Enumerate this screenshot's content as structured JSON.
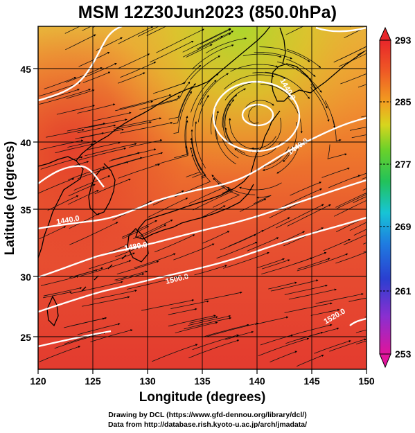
{
  "figure": {
    "title": "MSM 12Z30Jun2023 (850.0hPa)",
    "x_axis_label": "Longitude (degrees)",
    "y_axis_label": "Latitude  (degrees)",
    "x_ticks": [
      "120",
      "125",
      "130",
      "135",
      "140",
      "145",
      "150"
    ],
    "y_ticks": [
      "25",
      "30",
      "35",
      "40",
      "45"
    ],
    "colorbar_ticks": [
      "293",
      "285",
      "277",
      "269",
      "261",
      "253"
    ],
    "contour_labels": [
      "1440.0",
      "1440.0",
      "1440.0",
      "1480.0",
      "1500.0",
      "1520.0"
    ],
    "footer_line1": "Drawing by DCL (https://www.gfd-dennou.org/library/dcl/)",
    "footer_line2": "Data from http://database.rish.kyoto-u.ac.jp/arch/jmadata/"
  },
  "map": {
    "lon_range": [
      120,
      150
    ],
    "lat_range": [
      22.5,
      48
    ],
    "field": "temperature (K) shaded, geopotential height contours, streamlines",
    "colorbar_range": [
      253,
      293
    ],
    "colorbar_colors": [
      "#e0149b",
      "#8a2fd0",
      "#3f3fd0",
      "#1f7be0",
      "#17c4d6",
      "#22c25a",
      "#6ad12a",
      "#c9dc1e",
      "#f2b51f",
      "#f07a22",
      "#e8402a",
      "#e8262a"
    ],
    "dominant_colors": {
      "warm_south": "#e8402a",
      "mid": "#f07a22",
      "north_cool": "#bcd92a",
      "contour": "#ffffff",
      "coast_grid": "#000000"
    }
  }
}
